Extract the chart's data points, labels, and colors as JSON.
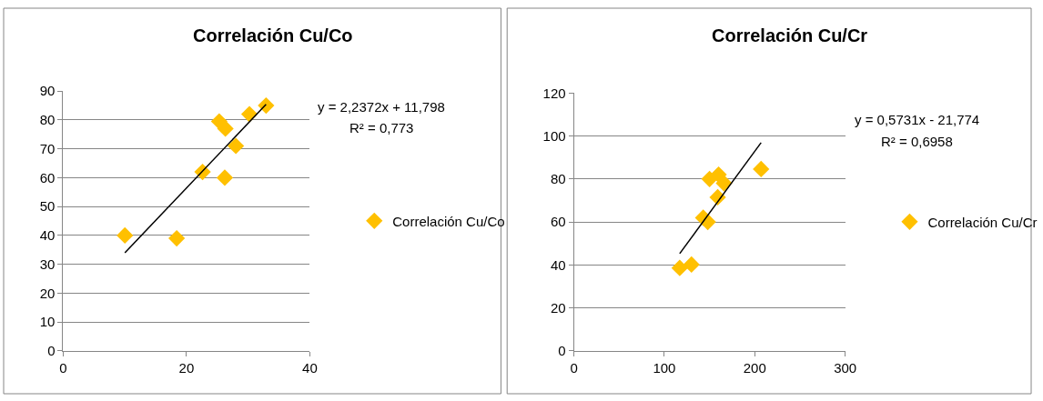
{
  "chart_data": [
    {
      "type": "scatter",
      "title": "Correlación Cu/Co",
      "xlim": [
        0,
        40
      ],
      "xticks": [
        0,
        20,
        40
      ],
      "ylim": [
        0,
        90
      ],
      "yticks": [
        0,
        10,
        20,
        30,
        40,
        50,
        60,
        70,
        80,
        90
      ],
      "grid": "y",
      "legend": "right",
      "series": [
        {
          "name": "Correlación Cu/Co",
          "color": "#ffc000",
          "marker": "diamond",
          "x": [
            10,
            18.4,
            22.6,
            26.2,
            25.3,
            26.3,
            28,
            30.2,
            32.9
          ],
          "values": [
            40,
            39,
            62,
            60,
            79.5,
            77,
            71,
            82,
            85
          ]
        },
        {
          "type": "line",
          "color": "#000000",
          "marker": "none",
          "x": [
            10,
            32.9
          ],
          "values": [
            34,
            85.4
          ]
        }
      ],
      "annotations": [
        "y = 2,2372x + 11,798",
        "R² = 0,773"
      ]
    },
    {
      "type": "scatter",
      "title": "Correlación Cu/Cr",
      "xlim": [
        0,
        300
      ],
      "xticks": [
        0,
        100,
        200,
        300
      ],
      "ylim": [
        0,
        120
      ],
      "yticks": [
        0,
        20,
        40,
        60,
        80,
        100,
        120
      ],
      "grid": "y",
      "legend": "right",
      "series": [
        {
          "name": "Correlación Cu/Cr",
          "color": "#ffc000",
          "marker": "diamond",
          "x": [
            117,
            130,
            143,
            148,
            150,
            160,
            166,
            159,
            207
          ],
          "values": [
            38.6,
            40.2,
            62,
            60,
            80,
            82,
            78,
            71.5,
            84.6
          ]
        },
        {
          "type": "line",
          "color": "#000000",
          "marker": "none",
          "x": [
            117,
            207
          ],
          "values": [
            45.3,
            96.9
          ]
        }
      ],
      "annotations": [
        "y = 0,5731x - 21,774",
        "R² = 0,6958"
      ]
    }
  ]
}
